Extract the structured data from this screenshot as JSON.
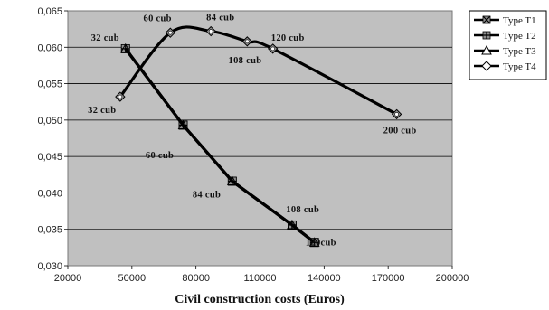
{
  "chart_data": {
    "type": "line",
    "title": "",
    "xlabel": "Civil construction costs (Euros)",
    "ylabel": "",
    "xlim": [
      20000,
      200000
    ],
    "ylim": [
      0.03,
      0.065
    ],
    "x_ticks": [
      20000,
      50000,
      80000,
      110000,
      140000,
      170000,
      200000
    ],
    "x_tick_labels": [
      "20000",
      "50000",
      "80000",
      "110000",
      "140000",
      "170000",
      "200000"
    ],
    "y_ticks": [
      0.03,
      0.035,
      0.04,
      0.045,
      0.05,
      0.055,
      0.06,
      0.065
    ],
    "y_tick_labels": [
      "0,030",
      "0,035",
      "0,040",
      "0,045",
      "0,050",
      "0,055",
      "0,060",
      "0,065"
    ],
    "grid": "horizontal",
    "legend_position": "top-right",
    "colors": {
      "plot_bg": "#c0c0c0",
      "line": "#000000",
      "marker_fill": "#8e8e8e"
    },
    "series": [
      {
        "name": "Type T1",
        "marker": "x-box",
        "x": [
          47000,
          74000,
          97000,
          125000,
          135500
        ],
        "y": [
          0.0598,
          0.0493,
          0.0416,
          0.0356,
          0.0332
        ]
      },
      {
        "name": "Type T2",
        "marker": "plus-box",
        "x": [
          47000,
          74000,
          97000,
          125000,
          135500
        ],
        "y": [
          0.0598,
          0.0493,
          0.0416,
          0.0356,
          0.0332
        ]
      },
      {
        "name": "Type T3",
        "marker": "triangle",
        "x": [
          47000,
          74000,
          97000,
          125000,
          135500
        ],
        "y": [
          0.0598,
          0.0493,
          0.0416,
          0.0356,
          0.0332
        ]
      },
      {
        "name": "Type T4",
        "marker": "diamond",
        "x": [
          44500,
          68000,
          87000,
          104000,
          116000,
          174000
        ],
        "y": [
          0.0532,
          0.062,
          0.0622,
          0.0608,
          0.0598,
          0.0508
        ],
        "smooth": true
      }
    ],
    "annotations": [
      {
        "text": "32 cub",
        "x": 37500,
        "y": 0.0609
      },
      {
        "text": "60 cub",
        "x": 63000,
        "y": 0.0448
      },
      {
        "text": "84 cub",
        "x": 85000,
        "y": 0.0394
      },
      {
        "text": "108 cub",
        "x": 130000,
        "y": 0.0373
      },
      {
        "text": "120cub",
        "x": 138500,
        "y": 0.0328
      },
      {
        "text": "32 cub",
        "x": 36000,
        "y": 0.051
      },
      {
        "text": "60 cub",
        "x": 62000,
        "y": 0.0636
      },
      {
        "text": "84 cub",
        "x": 91500,
        "y": 0.0637
      },
      {
        "text": "108 cub",
        "x": 103000,
        "y": 0.0578
      },
      {
        "text": "120 cub",
        "x": 123000,
        "y": 0.0609
      },
      {
        "text": "200 cub",
        "x": 175500,
        "y": 0.0482
      }
    ]
  }
}
